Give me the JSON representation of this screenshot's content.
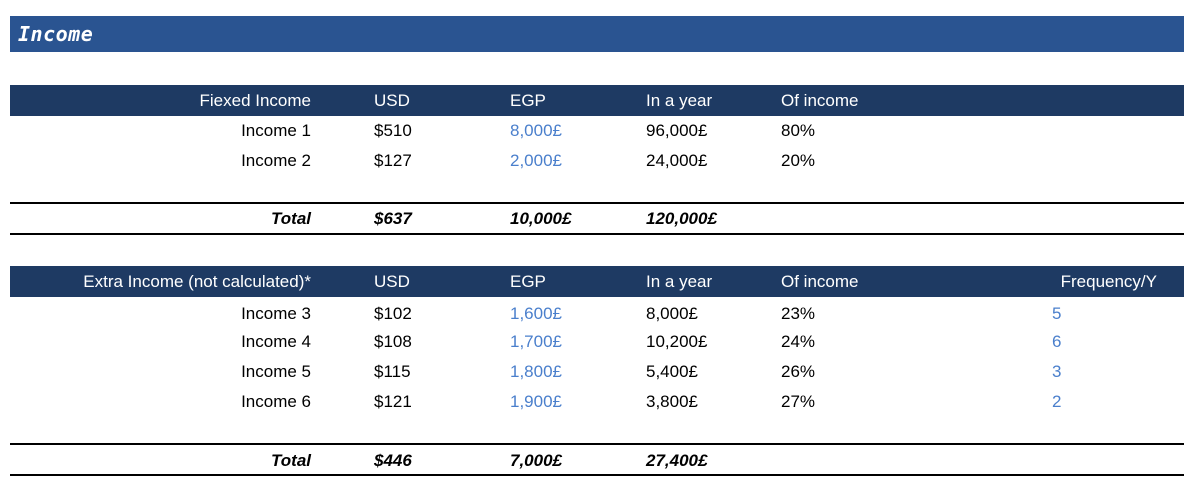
{
  "title": "Income",
  "fixed": {
    "headers": [
      "Fiexed Income",
      "USD",
      "EGP",
      "In a year",
      "Of income"
    ],
    "rows": [
      {
        "name": "Income 1",
        "usd": "$510",
        "egp": "8,000£",
        "year": "96,000£",
        "pct": "80%"
      },
      {
        "name": "Income 2",
        "usd": "$127",
        "egp": "2,000£",
        "year": "24,000£",
        "pct": "20%"
      }
    ],
    "total": {
      "label": "Total",
      "usd": "$637",
      "egp": "10,000£",
      "year": "120,000£"
    }
  },
  "extra": {
    "headers": [
      "Extra Income (not calculated)*",
      "USD",
      "EGP",
      "In a year",
      "Of income",
      "Frequency/Y"
    ],
    "rows": [
      {
        "name": "Income 3",
        "usd": "$102",
        "egp": "1,600£",
        "year": "8,000£",
        "pct": "23%",
        "freq": "5"
      },
      {
        "name": "Income 4",
        "usd": "$108",
        "egp": "1,700£",
        "year": "10,200£",
        "pct": "24%",
        "freq": "6"
      },
      {
        "name": "Income 5",
        "usd": "$115",
        "egp": "1,800£",
        "year": "5,400£",
        "pct": "26%",
        "freq": "3"
      },
      {
        "name": "Income 6",
        "usd": "$121",
        "egp": "1,900£",
        "year": "3,800£",
        "pct": "27%",
        "freq": "2"
      }
    ],
    "total": {
      "label": "Total",
      "usd": "$446",
      "egp": "7,000£",
      "year": "27,400£"
    }
  },
  "colors": {
    "title_bar": "#2a5491",
    "header_bar": "#1e3a63",
    "input_blue": "#4a7fcc"
  }
}
